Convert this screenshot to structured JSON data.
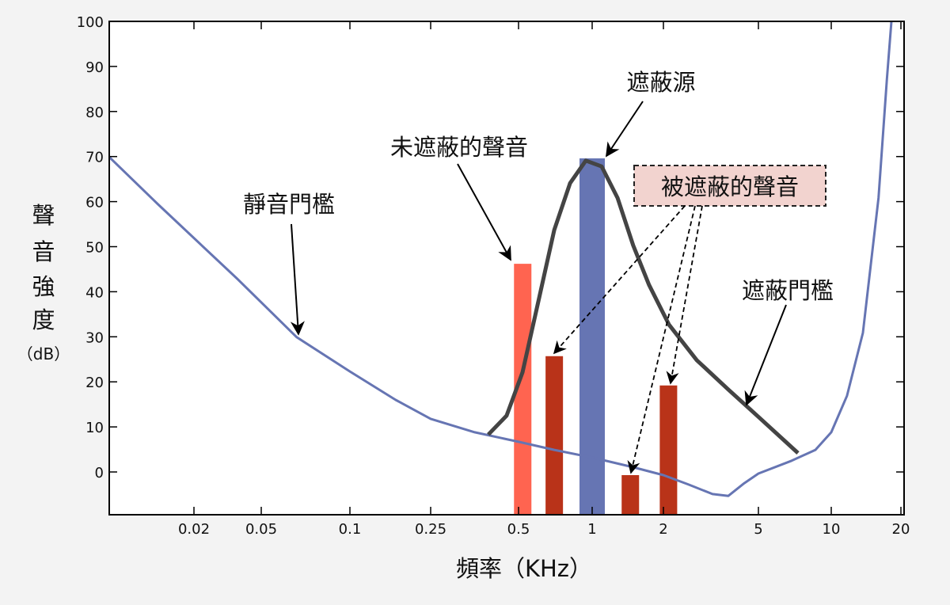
{
  "chart_data": {
    "type": "line",
    "xlabel": "頻率（KHz）",
    "ylabel_chars": [
      "聲",
      "音",
      "強",
      "度"
    ],
    "ylabel_unit": "（dB）",
    "x_scale": "nonlinear (frequency, log-like)",
    "xlim": [
      0.006,
      20
    ],
    "ylim": [
      -9.5,
      100
    ],
    "x_ticks": [
      0.02,
      0.05,
      0.1,
      0.25,
      0.5,
      1,
      2,
      5,
      10,
      20
    ],
    "x_tick_labels": [
      "0.02",
      "0.05",
      "0.1",
      "0.25",
      "0.5",
      "1",
      "2",
      "5",
      "10",
      "20"
    ],
    "y_ticks": [
      0,
      10,
      20,
      30,
      40,
      50,
      60,
      70,
      80,
      90,
      100
    ],
    "y_tick_labels": [
      "0",
      "10",
      "20",
      "30",
      "40",
      "50",
      "60",
      "70",
      "80",
      "90",
      "100"
    ],
    "grid": false,
    "colors": {
      "quiet_threshold": "#6675b3",
      "masking_threshold": "#444444",
      "masker": "#6675b3",
      "unmasked": "#ff6450",
      "masked": "#b93319",
      "masked_box": "#f2d3cf"
    },
    "quiet_threshold": {
      "x": [
        0.006,
        0.012,
        0.036,
        0.066,
        0.1,
        0.168,
        0.25,
        0.354,
        0.5,
        0.7,
        1,
        1.49,
        2,
        2.55,
        3.21,
        3.74,
        4.36,
        5,
        6.86,
        8.6,
        10,
        11.7,
        13.7,
        16.0,
        17.4,
        18.2
      ],
      "y": [
        69.9,
        59.4,
        42.9,
        29.9,
        22.3,
        16.0,
        11.8,
        8.8,
        6.7,
        4.9,
        3.2,
        1.05,
        -0.7,
        -2.8,
        -4.9,
        -5.3,
        -2.5,
        -0.35,
        2.5,
        4.9,
        8.8,
        16.9,
        30.9,
        60.8,
        87.2,
        100
      ]
    },
    "masking_threshold": {
      "x": [
        0.394,
        0.455,
        0.519,
        0.603,
        0.7,
        0.812,
        0.942,
        1.097,
        1.28,
        1.49,
        1.74,
        2.11,
        2.76,
        3.74,
        5.08,
        7.29
      ],
      "y": [
        8.3,
        12.5,
        22.1,
        37.9,
        53.7,
        64.1,
        69.1,
        67.8,
        60.8,
        50.3,
        41.5,
        32.7,
        24.8,
        18.3,
        11.9,
        4.2
      ]
    },
    "bars": [
      {
        "kind": "unmasked",
        "x": 0.52,
        "value": 46.2
      },
      {
        "kind": "masked",
        "x": 0.7,
        "value": 25.7
      },
      {
        "kind": "masker",
        "x": 1.0,
        "value": 69.6
      },
      {
        "kind": "masked",
        "x": 1.45,
        "value": -0.7
      },
      {
        "kind": "masked",
        "x": 2.1,
        "value": 19.2
      }
    ],
    "annotations": {
      "quiet_threshold": "靜音門檻",
      "unmasked_sound": "未遮蔽的聲音",
      "masker": "遮蔽源",
      "masked_sound": "被遮蔽的聲音",
      "masking_threshold": "遮蔽門檻"
    }
  }
}
